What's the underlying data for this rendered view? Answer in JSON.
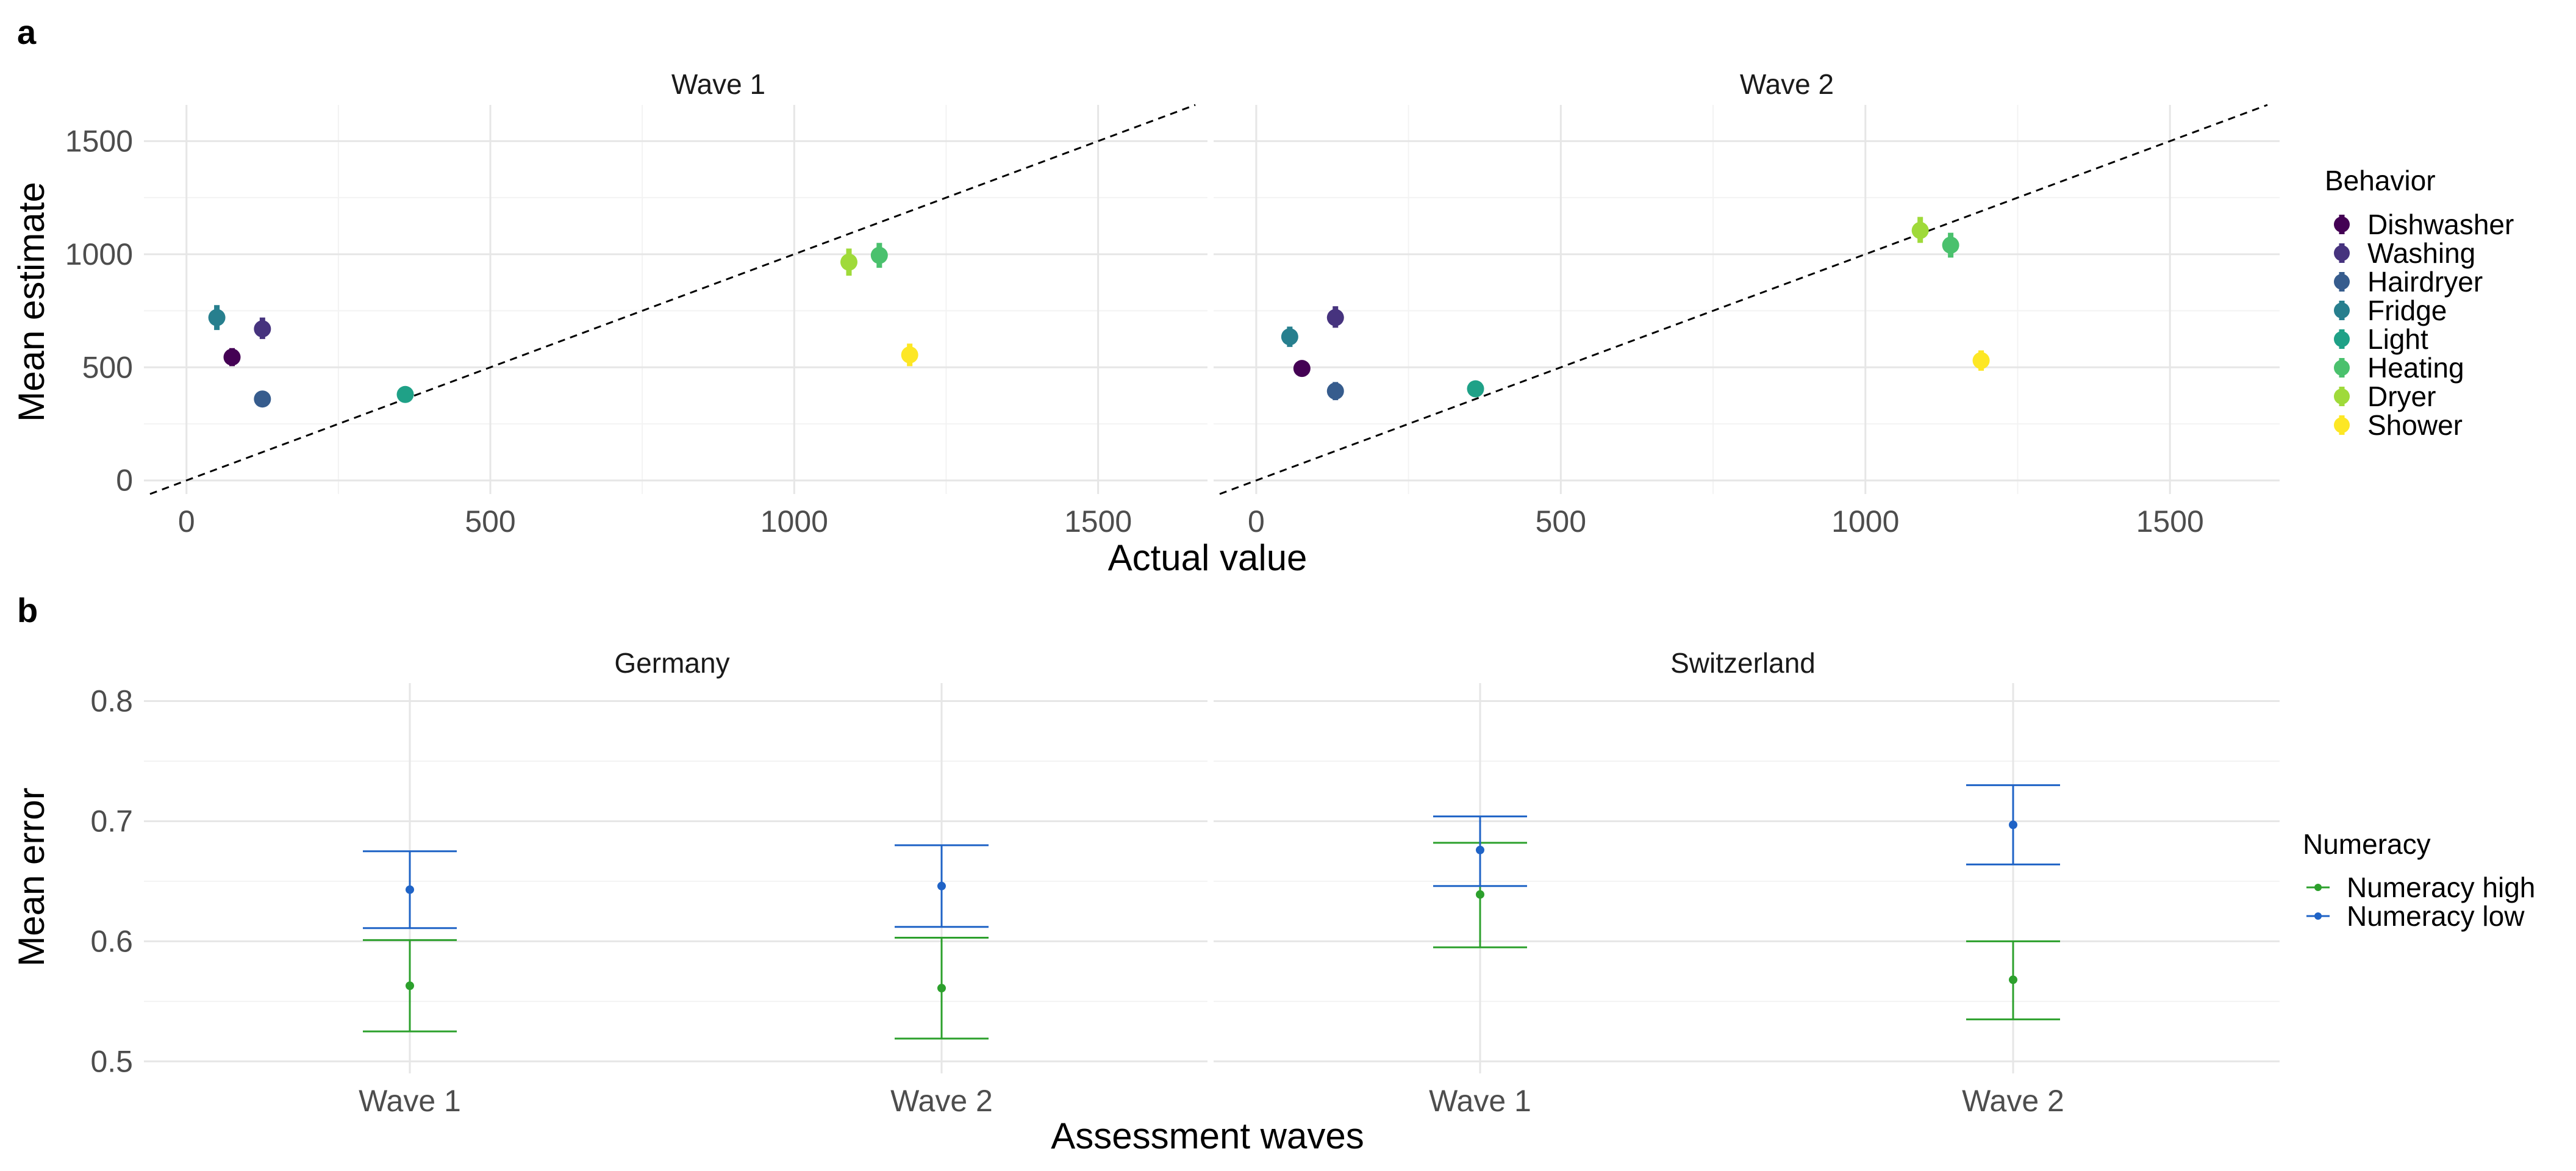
{
  "panel_a": {
    "label": "a",
    "xlabel": "Actual value",
    "ylabel": "Mean estimate",
    "legend_title": "Behavior",
    "facets": [
      "Wave 1",
      "Wave 2"
    ]
  },
  "panel_b": {
    "label": "b",
    "xlabel": "Assessment waves",
    "ylabel": "Mean error",
    "legend_title": "Numeracy",
    "facets": [
      "Germany",
      "Switzerland"
    ]
  },
  "colors": {
    "Dishwasher": "#440154",
    "Washing": "#46337e",
    "Hairdryer": "#365c8d",
    "Fridge": "#277f8e",
    "Light": "#1fa187",
    "Heating": "#4ac16d",
    "Dryer": "#9fda3a",
    "Shower": "#fde725",
    "Numeracy high": "#2ca02c",
    "Numeracy low": "#1f63c6",
    "grid_major": "#e6e6e6",
    "grid_minor": "#f3f3f3"
  },
  "chart_data": [
    {
      "type": "scatter",
      "panel": "a",
      "facets": [
        "Wave 1",
        "Wave 2"
      ],
      "xlabel": "Actual value",
      "ylabel": "Mean estimate",
      "xlim": [
        -70,
        1680
      ],
      "ylim": [
        -60,
        1660
      ],
      "xticks": [
        0,
        500,
        1000,
        1500
      ],
      "yticks": [
        0,
        500,
        1000,
        1500
      ],
      "grid": true,
      "reference_line": "y = x (dashed)",
      "legend": {
        "title": "Behavior",
        "position": "right",
        "entries": [
          "Dishwasher",
          "Washing",
          "Hairdryer",
          "Fridge",
          "Light",
          "Heating",
          "Dryer",
          "Shower"
        ]
      },
      "series": [
        {
          "name": "Dishwasher",
          "points": [
            {
              "facet": "Wave 1",
              "x": 75,
              "y": 545,
              "ci": [
                505,
                585
              ]
            },
            {
              "facet": "Wave 2",
              "x": 75,
              "y": 495,
              "ci": [
                460,
                530
              ]
            }
          ]
        },
        {
          "name": "Washing",
          "points": [
            {
              "facet": "Wave 1",
              "x": 125,
              "y": 670,
              "ci": [
                625,
                720
              ]
            },
            {
              "facet": "Wave 2",
              "x": 130,
              "y": 720,
              "ci": [
                675,
                770
              ]
            }
          ]
        },
        {
          "name": "Hairdryer",
          "points": [
            {
              "facet": "Wave 1",
              "x": 125,
              "y": 360,
              "ci": [
                330,
                390
              ]
            },
            {
              "facet": "Wave 2",
              "x": 130,
              "y": 395,
              "ci": [
                355,
                435
              ]
            }
          ]
        },
        {
          "name": "Fridge",
          "points": [
            {
              "facet": "Wave 1",
              "x": 50,
              "y": 720,
              "ci": [
                665,
                775
              ]
            },
            {
              "facet": "Wave 2",
              "x": 55,
              "y": 635,
              "ci": [
                590,
                680
              ]
            }
          ]
        },
        {
          "name": "Light",
          "points": [
            {
              "facet": "Wave 1",
              "x": 360,
              "y": 380,
              "ci": [
                345,
                415
              ]
            },
            {
              "facet": "Wave 2",
              "x": 360,
              "y": 405,
              "ci": [
                370,
                440
              ]
            }
          ]
        },
        {
          "name": "Heating",
          "points": [
            {
              "facet": "Wave 1",
              "x": 1140,
              "y": 995,
              "ci": [
                940,
                1050
              ]
            },
            {
              "facet": "Wave 2",
              "x": 1140,
              "y": 1040,
              "ci": [
                985,
                1095
              ]
            }
          ]
        },
        {
          "name": "Dryer",
          "points": [
            {
              "facet": "Wave 1",
              "x": 1090,
              "y": 965,
              "ci": [
                905,
                1025
              ]
            },
            {
              "facet": "Wave 2",
              "x": 1090,
              "y": 1105,
              "ci": [
                1050,
                1165
              ]
            }
          ]
        },
        {
          "name": "Shower",
          "points": [
            {
              "facet": "Wave 1",
              "x": 1190,
              "y": 555,
              "ci": [
                505,
                605
              ]
            },
            {
              "facet": "Wave 2",
              "x": 1190,
              "y": 530,
              "ci": [
                485,
                575
              ]
            }
          ]
        }
      ]
    },
    {
      "type": "scatter",
      "panel": "b",
      "facets": [
        "Germany",
        "Switzerland"
      ],
      "categories": [
        "Wave 1",
        "Wave 2"
      ],
      "xlabel": "Assessment waves",
      "ylabel": "Mean error",
      "ylim": [
        0.49,
        0.815
      ],
      "yticks": [
        0.5,
        0.6,
        0.7,
        0.8
      ],
      "grid": true,
      "legend": {
        "title": "Numeracy",
        "position": "right",
        "entries": [
          "Numeracy high",
          "Numeracy low"
        ]
      },
      "series": [
        {
          "name": "Numeracy high",
          "points": [
            {
              "facet": "Germany",
              "x": "Wave 1",
              "y": 0.563,
              "ci": [
                0.525,
                0.601
              ]
            },
            {
              "facet": "Germany",
              "x": "Wave 2",
              "y": 0.561,
              "ci": [
                0.519,
                0.603
              ]
            },
            {
              "facet": "Switzerland",
              "x": "Wave 1",
              "y": 0.639,
              "ci": [
                0.595,
                0.682
              ]
            },
            {
              "facet": "Switzerland",
              "x": "Wave 2",
              "y": 0.568,
              "ci": [
                0.535,
                0.6
              ]
            }
          ]
        },
        {
          "name": "Numeracy low",
          "points": [
            {
              "facet": "Germany",
              "x": "Wave 1",
              "y": 0.643,
              "ci": [
                0.611,
                0.675
              ]
            },
            {
              "facet": "Germany",
              "x": "Wave 2",
              "y": 0.646,
              "ci": [
                0.612,
                0.68
              ]
            },
            {
              "facet": "Switzerland",
              "x": "Wave 1",
              "y": 0.676,
              "ci": [
                0.646,
                0.704
              ]
            },
            {
              "facet": "Switzerland",
              "x": "Wave 2",
              "y": 0.697,
              "ci": [
                0.664,
                0.73
              ]
            }
          ]
        }
      ]
    }
  ]
}
